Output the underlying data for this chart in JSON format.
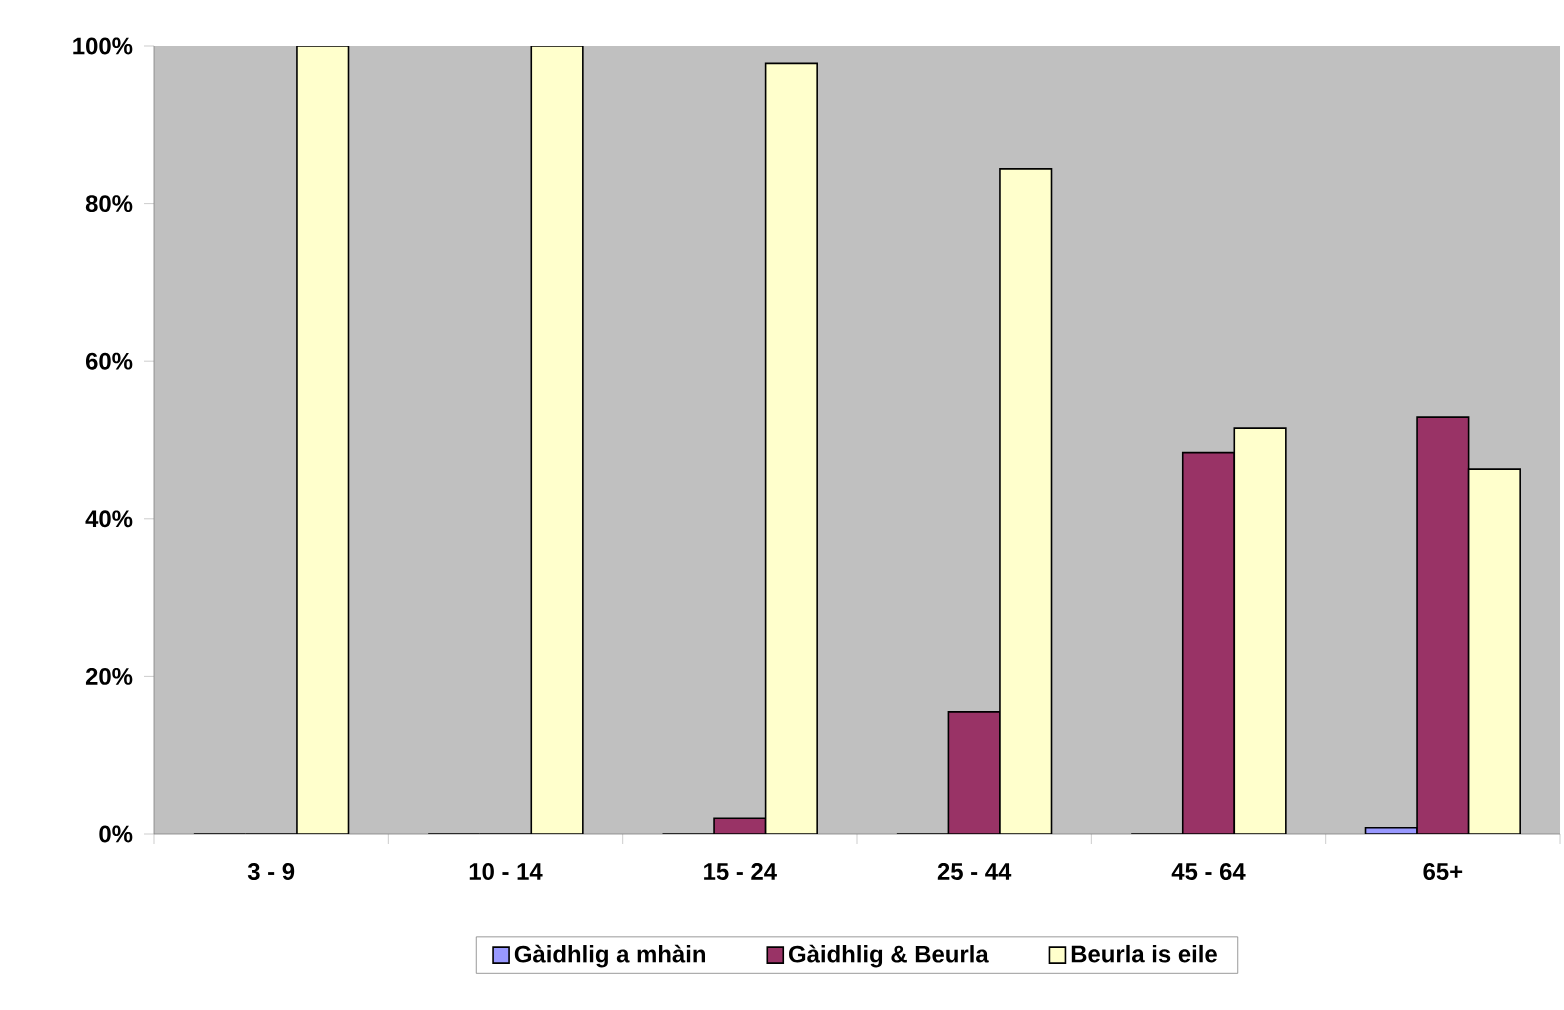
{
  "chart_data": {
    "type": "bar",
    "categories": [
      "3 - 9",
      "10 - 14",
      "15 - 24",
      "25 - 44",
      "45 - 64",
      "65+"
    ],
    "series": [
      {
        "name": "Gàidhlig a mhàin",
        "color": "#9999ff",
        "values": [
          0,
          0,
          0,
          0,
          0,
          0.8
        ]
      },
      {
        "name": "Gàidhlig & Beurla",
        "color": "#993366",
        "values": [
          0,
          0,
          2,
          15.5,
          48.4,
          52.9
        ]
      },
      {
        "name": "Beurla is eile",
        "color": "#ffffcc",
        "values": [
          100,
          100,
          97.8,
          84.4,
          51.5,
          46.3
        ]
      }
    ],
    "ylim": [
      0,
      100
    ],
    "yticks": [
      {
        "value": 0,
        "label": "0%"
      },
      {
        "value": 20,
        "label": "20%"
      },
      {
        "value": 40,
        "label": "40%"
      },
      {
        "value": 60,
        "label": "60%"
      },
      {
        "value": 80,
        "label": "80%"
      },
      {
        "value": 100,
        "label": "100%"
      }
    ],
    "grid": false,
    "legend": "bottom"
  }
}
